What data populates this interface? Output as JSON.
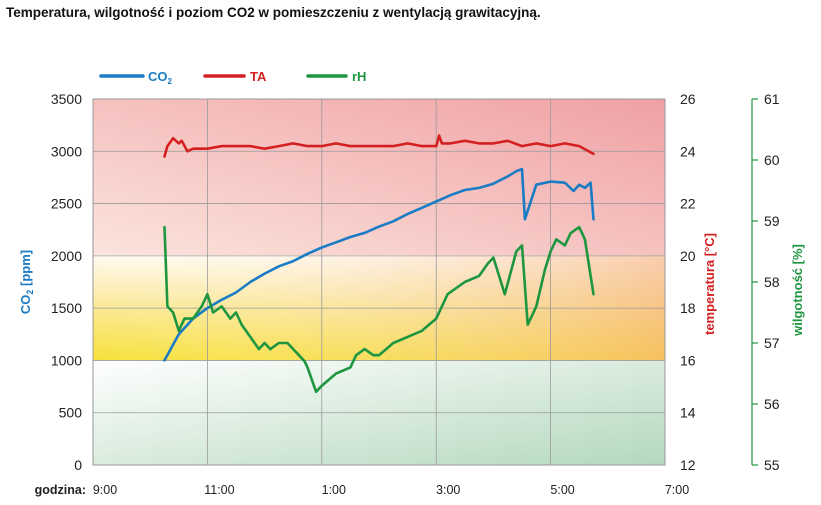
{
  "chart_data": {
    "type": "line",
    "title": "Temperatura, wilgotność i poziom CO2 w pomieszczeniu z wentylacją grawitacyjną.",
    "x_prefix": "godzina:",
    "x_ticks": [
      "9:00",
      "11:00",
      "1:00",
      "3:00",
      "5:00",
      "7:00"
    ],
    "x_unit": "hours since 9:00",
    "xlim": [
      0,
      10
    ],
    "axes": {
      "co2": {
        "label": "CO2 [ppm]",
        "ylim": [
          0,
          3500
        ],
        "ticks": [
          0,
          500,
          1000,
          1500,
          2000,
          2500,
          3000,
          3500
        ],
        "color": "#1a7cc4"
      },
      "ta": {
        "label": "temperatura [°C]",
        "ylim": [
          12,
          26
        ],
        "ticks": [
          12,
          14,
          16,
          18,
          20,
          22,
          24,
          26
        ],
        "color": "#d42020"
      },
      "rh": {
        "label": "wilgotność [%]",
        "ylim": [
          55,
          61
        ],
        "ticks": [
          55,
          56,
          57,
          58,
          59,
          60,
          61
        ],
        "color": "#1e9640"
      }
    },
    "series": [
      {
        "name": "CO2",
        "axis": "co2",
        "color": "#1a7cc4",
        "x": [
          1.25,
          1.5,
          1.75,
          2.0,
          2.25,
          2.5,
          2.75,
          3.0,
          3.25,
          3.5,
          3.75,
          4.0,
          4.25,
          4.5,
          4.75,
          5.0,
          5.25,
          5.5,
          5.75,
          6.0,
          6.25,
          6.5,
          6.75,
          7.0,
          7.25,
          7.4,
          7.5,
          7.55,
          7.6,
          7.75,
          8.0,
          8.25,
          8.4,
          8.5,
          8.6,
          8.7,
          8.75
        ],
        "values": [
          1000,
          1250,
          1400,
          1500,
          1580,
          1650,
          1750,
          1830,
          1900,
          1950,
          2020,
          2080,
          2130,
          2180,
          2220,
          2280,
          2330,
          2400,
          2460,
          2520,
          2580,
          2630,
          2650,
          2690,
          2760,
          2810,
          2830,
          2350,
          2430,
          2680,
          2710,
          2700,
          2620,
          2680,
          2650,
          2700,
          2350
        ]
      },
      {
        "name": "TA",
        "axis": "ta",
        "color": "#d42020",
        "x": [
          1.25,
          1.3,
          1.4,
          1.5,
          1.55,
          1.65,
          1.75,
          2.0,
          2.25,
          2.5,
          2.75,
          3.0,
          3.25,
          3.5,
          3.75,
          4.0,
          4.25,
          4.5,
          4.75,
          5.0,
          5.25,
          5.5,
          5.75,
          6.0,
          6.05,
          6.1,
          6.25,
          6.5,
          6.75,
          7.0,
          7.25,
          7.5,
          7.75,
          8.0,
          8.25,
          8.5,
          8.75
        ],
        "values": [
          23.8,
          24.2,
          24.5,
          24.3,
          24.4,
          24.0,
          24.1,
          24.1,
          24.2,
          24.2,
          24.2,
          24.1,
          24.2,
          24.3,
          24.2,
          24.2,
          24.3,
          24.2,
          24.2,
          24.2,
          24.2,
          24.3,
          24.2,
          24.2,
          24.6,
          24.3,
          24.3,
          24.4,
          24.3,
          24.3,
          24.4,
          24.2,
          24.3,
          24.2,
          24.3,
          24.2,
          23.9
        ]
      },
      {
        "name": "rH",
        "axis": "rh",
        "color": "#1e9640",
        "x": [
          1.25,
          1.3,
          1.4,
          1.5,
          1.6,
          1.75,
          1.9,
          2.0,
          2.1,
          2.25,
          2.4,
          2.5,
          2.6,
          2.75,
          2.9,
          3.0,
          3.1,
          3.25,
          3.4,
          3.5,
          3.6,
          3.7,
          3.75,
          3.9,
          4.0,
          4.25,
          4.5,
          4.6,
          4.75,
          4.9,
          5.0,
          5.25,
          5.5,
          5.75,
          6.0,
          6.1,
          6.2,
          6.5,
          6.75,
          6.9,
          7.0,
          7.2,
          7.4,
          7.5,
          7.6,
          7.75,
          7.9,
          8.0,
          8.1,
          8.25,
          8.35,
          8.5,
          8.6,
          8.75
        ],
        "values": [
          58.9,
          57.6,
          57.5,
          57.2,
          57.4,
          57.4,
          57.6,
          57.8,
          57.5,
          57.6,
          57.4,
          57.5,
          57.3,
          57.1,
          56.9,
          57.0,
          56.9,
          57.0,
          57.0,
          56.9,
          56.8,
          56.7,
          56.6,
          56.2,
          56.3,
          56.5,
          56.6,
          56.8,
          56.9,
          56.8,
          56.8,
          57.0,
          57.1,
          57.2,
          57.4,
          57.6,
          57.8,
          58.0,
          58.1,
          58.3,
          58.4,
          57.8,
          58.5,
          58.6,
          57.3,
          57.6,
          58.2,
          58.5,
          58.7,
          58.6,
          58.8,
          58.9,
          58.7,
          57.8
        ]
      }
    ],
    "legend": {
      "position": "top-left",
      "entries": [
        "CO2",
        "TA",
        "rH"
      ]
    },
    "background_zones": [
      {
        "from": 0,
        "to": 1000,
        "color": "#bcdcc4"
      },
      {
        "from": 1000,
        "to": 2000,
        "color": "#f5dc4a"
      },
      {
        "from": 2000,
        "to": 3500,
        "color": "#f2aaa8"
      }
    ],
    "grid": true
  }
}
